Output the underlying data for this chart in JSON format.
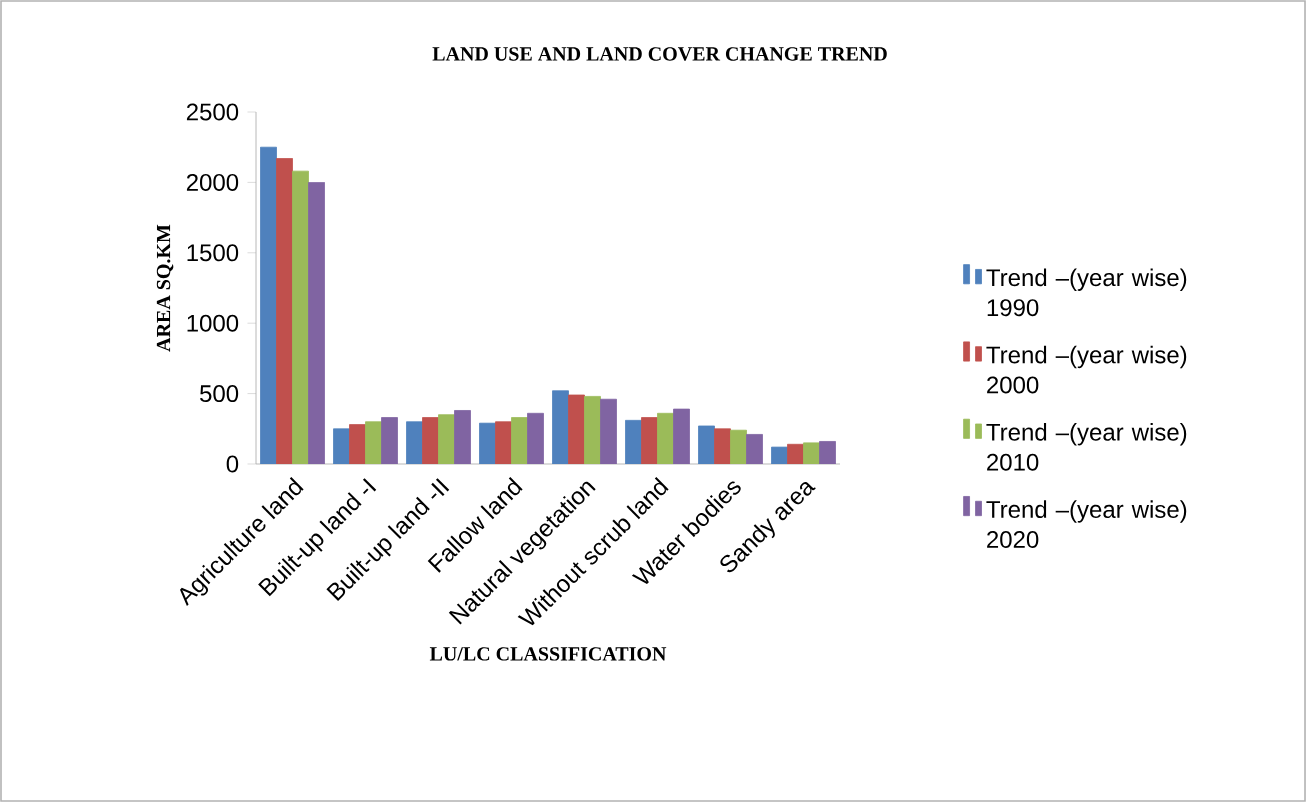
{
  "chart_data": {
    "type": "bar",
    "title": "LAND USE AND LAND COVER CHANGE TREND",
    "xlabel": "LU/LC CLASSIFICATION",
    "ylabel": "AREA SQ.KM",
    "categories": [
      "Agriculture land",
      "Built-up land -I",
      "Built-up land -II",
      "Fallow land",
      "Natural vegetation",
      "Without scrub land",
      "Water bodies",
      "Sandy area"
    ],
    "series": [
      {
        "name": "Trend –(year wise) 1990",
        "color": "#4f81bd",
        "values": [
          2250,
          250,
          300,
          290,
          520,
          310,
          270,
          120
        ]
      },
      {
        "name": "Trend –(year wise) 2000",
        "color": "#c0504d",
        "values": [
          2170,
          280,
          330,
          300,
          490,
          330,
          250,
          140
        ]
      },
      {
        "name": "Trend –(year wise) 2010",
        "color": "#9bbb59",
        "values": [
          2080,
          300,
          350,
          330,
          480,
          360,
          240,
          150
        ]
      },
      {
        "name": "Trend –(year wise) 2020",
        "color": "#8064a2",
        "values": [
          2000,
          330,
          380,
          360,
          460,
          390,
          210,
          160
        ]
      }
    ],
    "ylim": [
      0,
      2500
    ],
    "yticks": [
      0,
      500,
      1000,
      1500,
      2000,
      2500
    ],
    "legend": "right"
  }
}
